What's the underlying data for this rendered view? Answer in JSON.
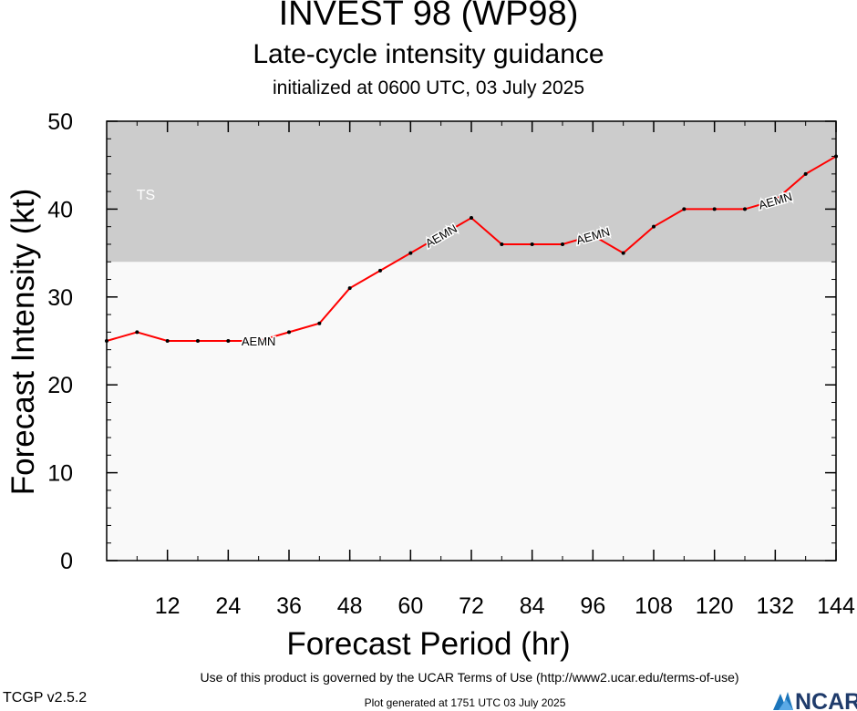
{
  "header": {
    "title": "INVEST 98 (WP98)",
    "subtitle": "Late-cycle intensity guidance",
    "init": "initialized at 0600 UTC, 03 July 2025"
  },
  "footer": {
    "terms": "Use of this product is governed by the UCAR Terms of Use (http://www2.ucar.edu/terms-of-use)",
    "version": "TCGP v2.5.2",
    "generated": "Plot generated at 1751 UTC   03 July 2025",
    "logo_text": "NCAR"
  },
  "colors": {
    "ts_band": "#cccccc",
    "plot_bg": "#f9f9f9",
    "series_line": "#ff0000",
    "point": "#000000"
  },
  "chart_data": {
    "type": "line",
    "title": "INVEST 98 (WP98)",
    "subtitle": "Late-cycle intensity guidance",
    "xlabel": "Forecast Period (hr)",
    "ylabel": "Forecast Intensity (kt)",
    "xlim": [
      0,
      144
    ],
    "ylim": [
      0,
      50
    ],
    "xticks": [
      12,
      24,
      36,
      48,
      60,
      72,
      84,
      96,
      108,
      120,
      132,
      144
    ],
    "yticks": [
      0,
      10,
      20,
      30,
      40,
      50
    ],
    "bands": [
      {
        "label": "TS",
        "from": 34,
        "to": 50
      }
    ],
    "series": [
      {
        "name": "AEMN",
        "x": [
          0,
          6,
          12,
          18,
          24,
          30,
          36,
          42,
          48,
          54,
          60,
          66,
          72,
          78,
          84,
          90,
          96,
          102,
          108,
          114,
          120,
          126,
          132,
          138,
          144
        ],
        "y": [
          25,
          26,
          25,
          25,
          25,
          25,
          26,
          27,
          31,
          33,
          35,
          37,
          39,
          36,
          36,
          36,
          37,
          35,
          38,
          40,
          40,
          40,
          41,
          44,
          46
        ],
        "label_at_x": [
          30,
          66,
          96,
          132
        ]
      }
    ]
  }
}
